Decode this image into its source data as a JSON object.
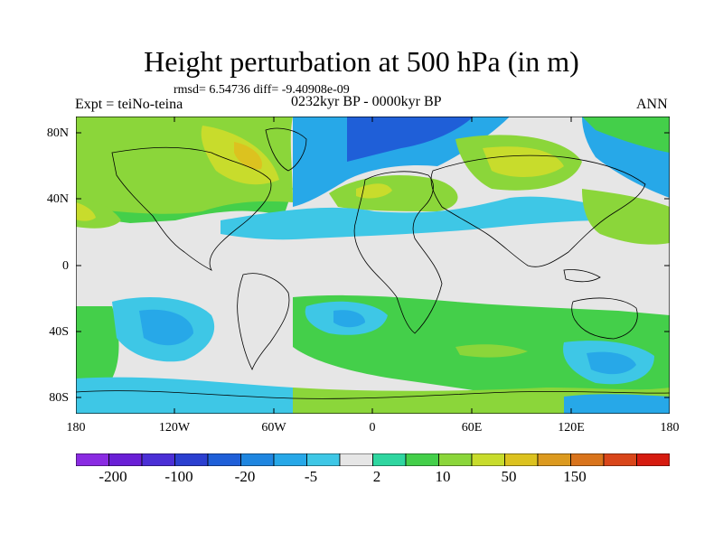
{
  "title": "Height perturbation at 500 hPa (in m)",
  "stats": "rmsd= 6.54736 diff= -9.40908e-09",
  "experiment": "Expt = teiNo-teina",
  "period": "0232kyr BP - 0000kyr BP",
  "season": "ANN",
  "lat_labels": [
    "80N",
    "40N",
    "0",
    "40S",
    "80S"
  ],
  "lon_labels": [
    "180",
    "120W",
    "60W",
    "0",
    "60E",
    "120E",
    "180"
  ],
  "colorbar": {
    "colors": [
      "#8a2be2",
      "#6a1fd6",
      "#4b2fd6",
      "#2b3fd0",
      "#1f5fd8",
      "#1f86e0",
      "#27a8e8",
      "#3ec7e6",
      "#e6e6e6",
      "#2fd6a0",
      "#44cf4a",
      "#8bd63a",
      "#c8dc2c",
      "#dcc21f",
      "#dc9a1f",
      "#d9741c",
      "#d9461a",
      "#d61b10"
    ],
    "labels": [
      "-200",
      "-100",
      "-20",
      "-5",
      "2",
      "10",
      "50",
      "150"
    ]
  },
  "colors": {
    "neutral": "#e6e6e6",
    "coast": "#000000"
  }
}
